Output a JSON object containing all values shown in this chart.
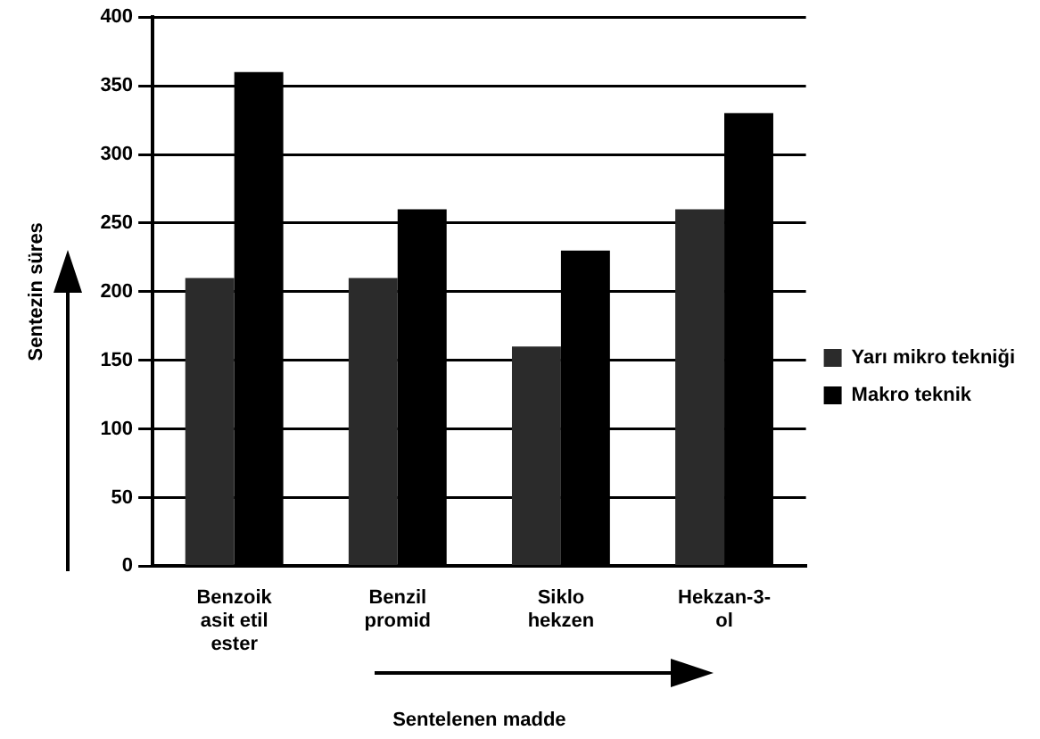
{
  "chart_data": {
    "type": "bar",
    "categories": [
      "Benzoik asit etil ester",
      "Benzil promid",
      "Siklo hekzen",
      "Hekzan-3-ol"
    ],
    "series": [
      {
        "name": "Yarı mikro tekniği",
        "color": "#2b2b2b",
        "values": [
          210,
          210,
          160,
          260
        ]
      },
      {
        "name": "Makro teknik",
        "color": "#000000",
        "values": [
          360,
          260,
          230,
          330
        ]
      }
    ],
    "xlabel": "Sentelenen madde",
    "ylabel": "Sentezin süres",
    "ylim": [
      0,
      400
    ],
    "yticks": [
      0,
      50,
      100,
      150,
      200,
      250,
      300,
      350,
      400
    ],
    "grid": "y",
    "legend": "right"
  }
}
